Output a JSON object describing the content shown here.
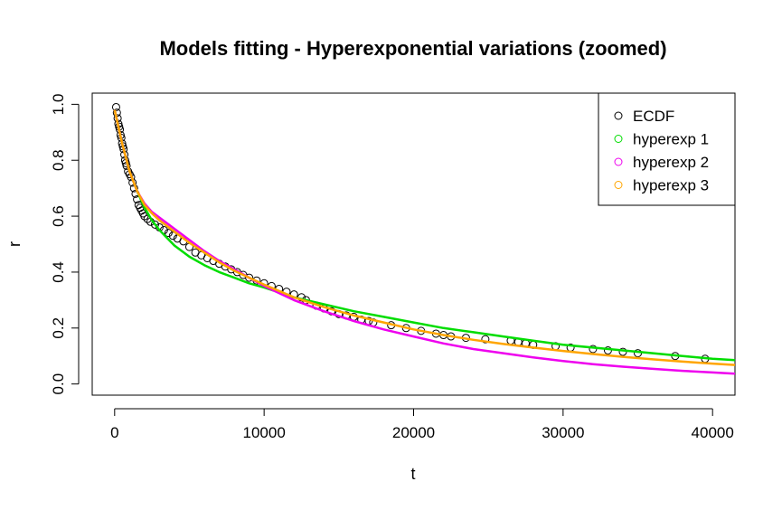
{
  "chart_data": {
    "type": "scatter",
    "title": "Models fitting - Hyperexponential variations (zoomed)",
    "xlabel": "t",
    "ylabel": "r",
    "xlim": [
      -1500,
      41500
    ],
    "ylim": [
      -0.04,
      1.04
    ],
    "x_ticks": [
      0,
      10000,
      20000,
      30000,
      40000
    ],
    "y_ticks": [
      0.0,
      0.2,
      0.4,
      0.6,
      0.8,
      1.0
    ],
    "x_tick_labels": [
      "0",
      "10000",
      "20000",
      "30000",
      "40000"
    ],
    "y_tick_labels": [
      "0.0",
      "0.2",
      "0.4",
      "0.6",
      "0.8",
      "1.0"
    ],
    "grid": false,
    "legend_position": "top-right",
    "legend": [
      {
        "label": "ECDF",
        "color": "#000000",
        "marker": "open-circle"
      },
      {
        "label": "hyperexp 1",
        "color": "#00dd00",
        "marker": "open-circle"
      },
      {
        "label": "hyperexp 2",
        "color": "#ee00ee",
        "marker": "open-circle"
      },
      {
        "label": "hyperexp 3",
        "color": "#ffa500",
        "marker": "open-circle"
      }
    ],
    "series": [
      {
        "name": "ECDF",
        "kind": "points",
        "color": "#000000",
        "x": [
          100,
          150,
          200,
          250,
          300,
          350,
          400,
          450,
          500,
          550,
          600,
          650,
          700,
          750,
          800,
          900,
          1000,
          1100,
          1200,
          1300,
          1400,
          1500,
          1600,
          1700,
          1800,
          1900,
          2000,
          2200,
          2400,
          2700,
          3000,
          3300,
          3600,
          3900,
          4200,
          4600,
          5000,
          5400,
          5800,
          6200,
          6600,
          7000,
          7400,
          7800,
          8200,
          8600,
          9000,
          9500,
          10000,
          10500,
          11000,
          11500,
          12000,
          12500,
          12800,
          13500,
          14000,
          14500,
          15000,
          15500,
          16000,
          16500,
          17000,
          17300,
          18500,
          19500,
          20500,
          21500,
          22000,
          22500,
          23500,
          24800,
          26500,
          27000,
          27500,
          28000,
          29500,
          30500,
          32000,
          33000,
          34000,
          35000,
          37500,
          39500
        ],
        "y": [
          0.99,
          0.97,
          0.95,
          0.93,
          0.92,
          0.91,
          0.89,
          0.88,
          0.86,
          0.85,
          0.84,
          0.82,
          0.8,
          0.79,
          0.78,
          0.76,
          0.75,
          0.74,
          0.72,
          0.7,
          0.68,
          0.66,
          0.64,
          0.63,
          0.62,
          0.61,
          0.6,
          0.59,
          0.58,
          0.57,
          0.56,
          0.55,
          0.54,
          0.53,
          0.52,
          0.51,
          0.49,
          0.47,
          0.46,
          0.45,
          0.44,
          0.43,
          0.42,
          0.41,
          0.4,
          0.39,
          0.38,
          0.37,
          0.36,
          0.35,
          0.34,
          0.33,
          0.32,
          0.31,
          0.3,
          0.28,
          0.27,
          0.26,
          0.25,
          0.245,
          0.24,
          0.23,
          0.225,
          0.22,
          0.21,
          0.2,
          0.19,
          0.18,
          0.175,
          0.17,
          0.165,
          0.16,
          0.155,
          0.15,
          0.145,
          0.14,
          0.135,
          0.13,
          0.125,
          0.12,
          0.115,
          0.11,
          0.1,
          0.09
        ]
      },
      {
        "name": "hyperexp 1",
        "kind": "line",
        "color": "#00dd00",
        "x": [
          0,
          500,
          1000,
          1500,
          2000,
          2500,
          3000,
          4000,
          5000,
          6000,
          7000,
          8000,
          9000,
          10000,
          12000,
          14000,
          16000,
          18000,
          20000,
          22000,
          24000,
          26000,
          28000,
          30000,
          32000,
          34000,
          36000,
          38000,
          40000,
          41500
        ],
        "y": [
          0.98,
          0.86,
          0.76,
          0.69,
          0.63,
          0.585,
          0.55,
          0.495,
          0.455,
          0.425,
          0.4,
          0.38,
          0.36,
          0.345,
          0.31,
          0.285,
          0.26,
          0.24,
          0.22,
          0.2,
          0.185,
          0.17,
          0.155,
          0.14,
          0.13,
          0.12,
          0.11,
          0.1,
          0.09,
          0.085
        ]
      },
      {
        "name": "hyperexp 2",
        "kind": "line",
        "color": "#ee00ee",
        "x": [
          0,
          500,
          1000,
          1500,
          2000,
          2500,
          3000,
          4000,
          5000,
          6000,
          7000,
          8000,
          9000,
          10000,
          12000,
          14000,
          16000,
          18000,
          20000,
          22000,
          24000,
          26000,
          28000,
          30000,
          32000,
          34000,
          36000,
          38000,
          40000,
          41500
        ],
        "y": [
          0.98,
          0.86,
          0.76,
          0.69,
          0.645,
          0.615,
          0.595,
          0.555,
          0.515,
          0.475,
          0.44,
          0.41,
          0.38,
          0.35,
          0.3,
          0.26,
          0.225,
          0.195,
          0.17,
          0.145,
          0.125,
          0.11,
          0.095,
          0.082,
          0.071,
          0.062,
          0.054,
          0.047,
          0.041,
          0.037
        ]
      },
      {
        "name": "hyperexp 3",
        "kind": "line",
        "color": "#ffa500",
        "x": [
          0,
          500,
          1000,
          1500,
          2000,
          2500,
          3000,
          4000,
          5000,
          6000,
          7000,
          8000,
          9000,
          10000,
          12000,
          14000,
          16000,
          18000,
          20000,
          22000,
          24000,
          26000,
          28000,
          30000,
          32000,
          34000,
          36000,
          38000,
          40000,
          41500
        ],
        "y": [
          0.98,
          0.86,
          0.76,
          0.69,
          0.64,
          0.61,
          0.585,
          0.545,
          0.505,
          0.47,
          0.435,
          0.405,
          0.38,
          0.355,
          0.31,
          0.275,
          0.245,
          0.22,
          0.195,
          0.175,
          0.158,
          0.143,
          0.13,
          0.118,
          0.107,
          0.097,
          0.088,
          0.08,
          0.073,
          0.068
        ]
      }
    ]
  }
}
